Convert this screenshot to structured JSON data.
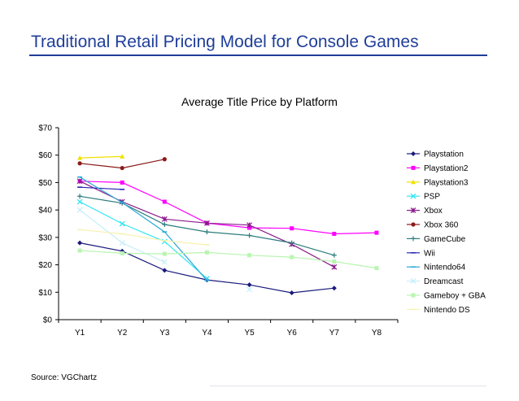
{
  "slide": {
    "title": "Traditional Retail Pricing Model for Console Games",
    "source": "Source: VGChartz"
  },
  "chart_data": {
    "type": "line",
    "title": "Average Title Price by Platform",
    "xlabel": "",
    "ylabel": "",
    "categories": [
      "Y1",
      "Y2",
      "Y3",
      "Y4",
      "Y5",
      "Y6",
      "Y7",
      "Y8"
    ],
    "ylim": [
      0,
      70
    ],
    "yticks": [
      "$0",
      "$10",
      "$20",
      "$30",
      "$40",
      "$50",
      "$60",
      "$70"
    ],
    "grid": false,
    "legend_position": "right",
    "series": [
      {
        "name": "Playstation",
        "color": "#1a1a7e",
        "marker": "diamond",
        "values": [
          28,
          25,
          18,
          14.5,
          12.7,
          9.8,
          11.5,
          null
        ]
      },
      {
        "name": "Playstation2",
        "color": "#ff00ff",
        "marker": "square",
        "values": [
          50.5,
          50,
          43,
          35.2,
          33.5,
          33.3,
          31.3,
          31.7
        ]
      },
      {
        "name": "Playstation3",
        "color": "#f2e000",
        "marker": "triangle",
        "values": [
          59,
          59.5,
          null,
          null,
          null,
          null,
          null,
          null
        ]
      },
      {
        "name": "PSP",
        "color": "#33e6f2",
        "marker": "x",
        "values": [
          43,
          35,
          28.5,
          15,
          null,
          null,
          null,
          null
        ]
      },
      {
        "name": "Xbox",
        "color": "#8b1a8b",
        "marker": "star",
        "values": [
          50.5,
          43,
          36.7,
          35.2,
          34.5,
          27.5,
          19.2,
          null
        ]
      },
      {
        "name": "Xbox 360",
        "color": "#8b1a1a",
        "marker": "circle",
        "values": [
          57,
          55.3,
          58.5,
          null,
          null,
          null,
          null,
          null
        ]
      },
      {
        "name": "GameCube",
        "color": "#2e7d7d",
        "marker": "plus",
        "values": [
          45,
          42.5,
          34.7,
          32,
          30.7,
          28,
          23.5,
          null
        ]
      },
      {
        "name": "Wii",
        "color": "#2a2ab8",
        "marker": "dash",
        "values": [
          48.3,
          47.5,
          null,
          null,
          null,
          null,
          null,
          null
        ]
      },
      {
        "name": "Nintendo64",
        "color": "#2ba8d9",
        "marker": "dash",
        "values": [
          52,
          42.7,
          32,
          14.3,
          null,
          null,
          null,
          null
        ]
      },
      {
        "name": "Dreamcast",
        "color": "#c7eefa",
        "marker": "x",
        "values": [
          40,
          28,
          21,
          null,
          11,
          null,
          null,
          null
        ]
      },
      {
        "name": "Gameboy + GBA",
        "color": "#b8f5b0",
        "marker": "square",
        "values": [
          25.2,
          24.2,
          24,
          24.5,
          23.5,
          22.8,
          21.2,
          18.8
        ]
      },
      {
        "name": "Nintendo DS",
        "color": "#f7f2b0",
        "marker": "dash",
        "values": [
          32.8,
          31.3,
          28.8,
          27.3,
          null,
          null,
          null,
          null
        ]
      }
    ]
  }
}
